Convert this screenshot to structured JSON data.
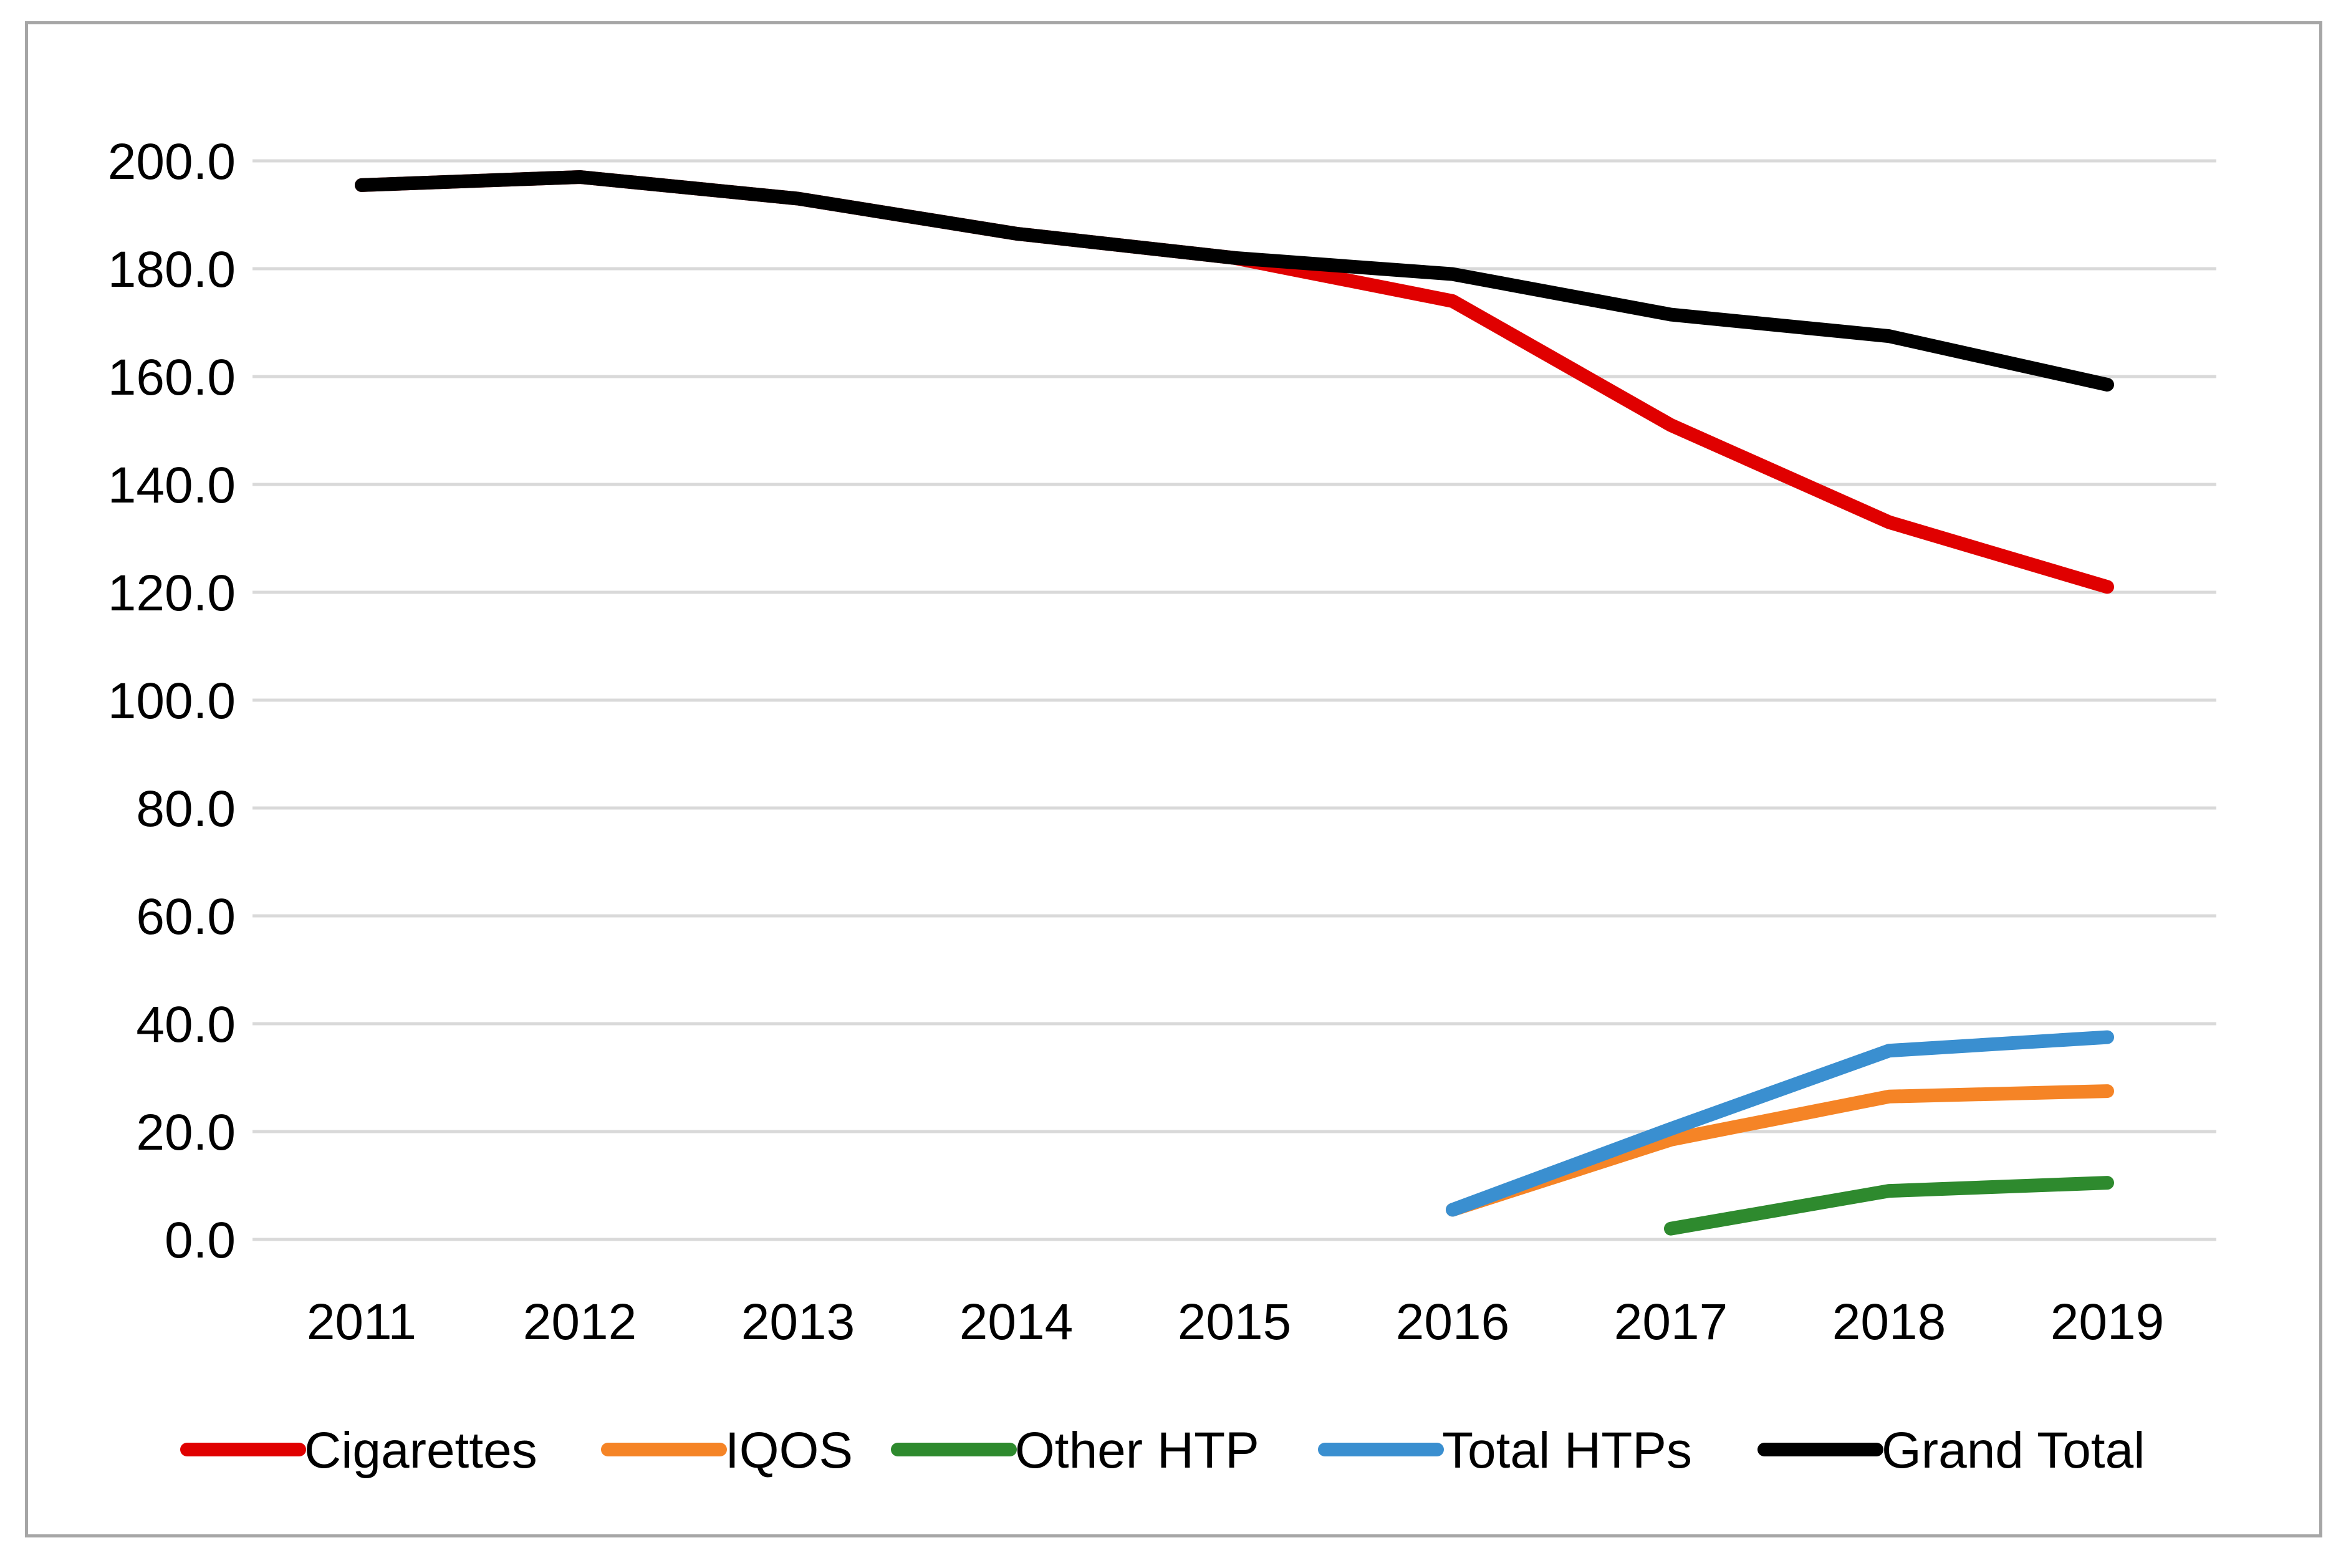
{
  "chart_data": {
    "type": "line",
    "title": "",
    "xlabel": "",
    "ylabel": "",
    "categories": [
      "2011",
      "2012",
      "2013",
      "2014",
      "2015",
      "2016",
      "2017",
      "2018",
      "2019"
    ],
    "ylim": [
      0,
      200
    ],
    "yticks": [
      0,
      20,
      40,
      60,
      80,
      100,
      120,
      140,
      160,
      180,
      200
    ],
    "ytick_labels": [
      "0.0",
      "20.0",
      "40.0",
      "60.0",
      "80.0",
      "100.0",
      "120.0",
      "140.0",
      "160.0",
      "180.0",
      "200.0"
    ],
    "grid": true,
    "legend_position": "bottom",
    "series": [
      {
        "name": "Cigarettes",
        "color": "#e00000",
        "values": [
          195.5,
          197.0,
          193.0,
          186.5,
          182.0,
          174.0,
          151.0,
          133.0,
          121.0
        ]
      },
      {
        "name": "IQOS",
        "color": "#f58426",
        "values": [
          null,
          null,
          null,
          null,
          null,
          5.5,
          18.5,
          26.5,
          27.5
        ]
      },
      {
        "name": "Other HTP",
        "color": "#2e8a2e",
        "values": [
          null,
          null,
          null,
          null,
          null,
          null,
          2.0,
          9.0,
          10.5
        ]
      },
      {
        "name": "Total HTPs",
        "color": "#3a8fd0",
        "values": [
          null,
          null,
          null,
          null,
          null,
          5.5,
          20.5,
          35.0,
          37.5
        ]
      },
      {
        "name": "Grand Total",
        "color": "#000000",
        "values": [
          195.5,
          197.0,
          193.0,
          186.5,
          182.0,
          179.0,
          171.5,
          167.5,
          158.5
        ]
      }
    ]
  }
}
